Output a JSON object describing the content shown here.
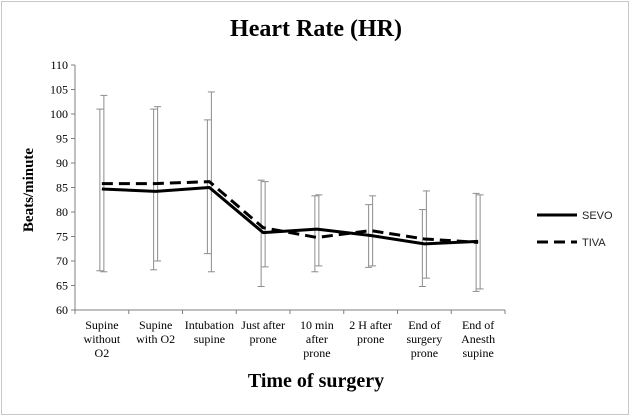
{
  "chart_data": {
    "type": "line",
    "title": "Heart Rate (HR)",
    "xlabel": "Time of surgery",
    "ylabel": "Beats/minute",
    "ylim": [
      60,
      110
    ],
    "yticks": [
      60,
      65,
      70,
      75,
      80,
      85,
      90,
      95,
      100,
      105,
      110
    ],
    "categories": [
      [
        "Supine",
        "without",
        "O2"
      ],
      [
        "Supine",
        "with O2"
      ],
      [
        "Intubation",
        "supine"
      ],
      [
        "Just after",
        "prone"
      ],
      [
        "10 min",
        "after",
        "prone"
      ],
      [
        "2 H after",
        "prone"
      ],
      [
        "End of",
        "surgery",
        "prone"
      ],
      [
        "End of",
        "Anesth",
        "supine"
      ]
    ],
    "series": [
      {
        "name": "SEVO",
        "style": "solid",
        "color": "#000000",
        "values": [
          84.7,
          84.2,
          85.0,
          75.8,
          76.5,
          75.2,
          73.5,
          74.0
        ],
        "error_low": [
          68.0,
          68.2,
          71.5,
          64.8,
          67.8,
          68.7,
          64.8,
          63.8
        ],
        "error_high": [
          101.0,
          101.0,
          98.8,
          86.5,
          83.3,
          81.5,
          80.5,
          83.8
        ]
      },
      {
        "name": "TIVA",
        "style": "dashed",
        "color": "#000000",
        "values": [
          85.8,
          85.8,
          86.2,
          76.8,
          74.8,
          76.2,
          74.5,
          73.8
        ],
        "error_low": [
          67.8,
          70.0,
          67.8,
          68.8,
          69.0,
          69.0,
          66.5,
          64.3
        ],
        "error_high": [
          103.8,
          101.5,
          104.5,
          86.2,
          83.5,
          83.3,
          84.3,
          83.5
        ]
      }
    ],
    "grid": false,
    "legend_position": "right"
  }
}
